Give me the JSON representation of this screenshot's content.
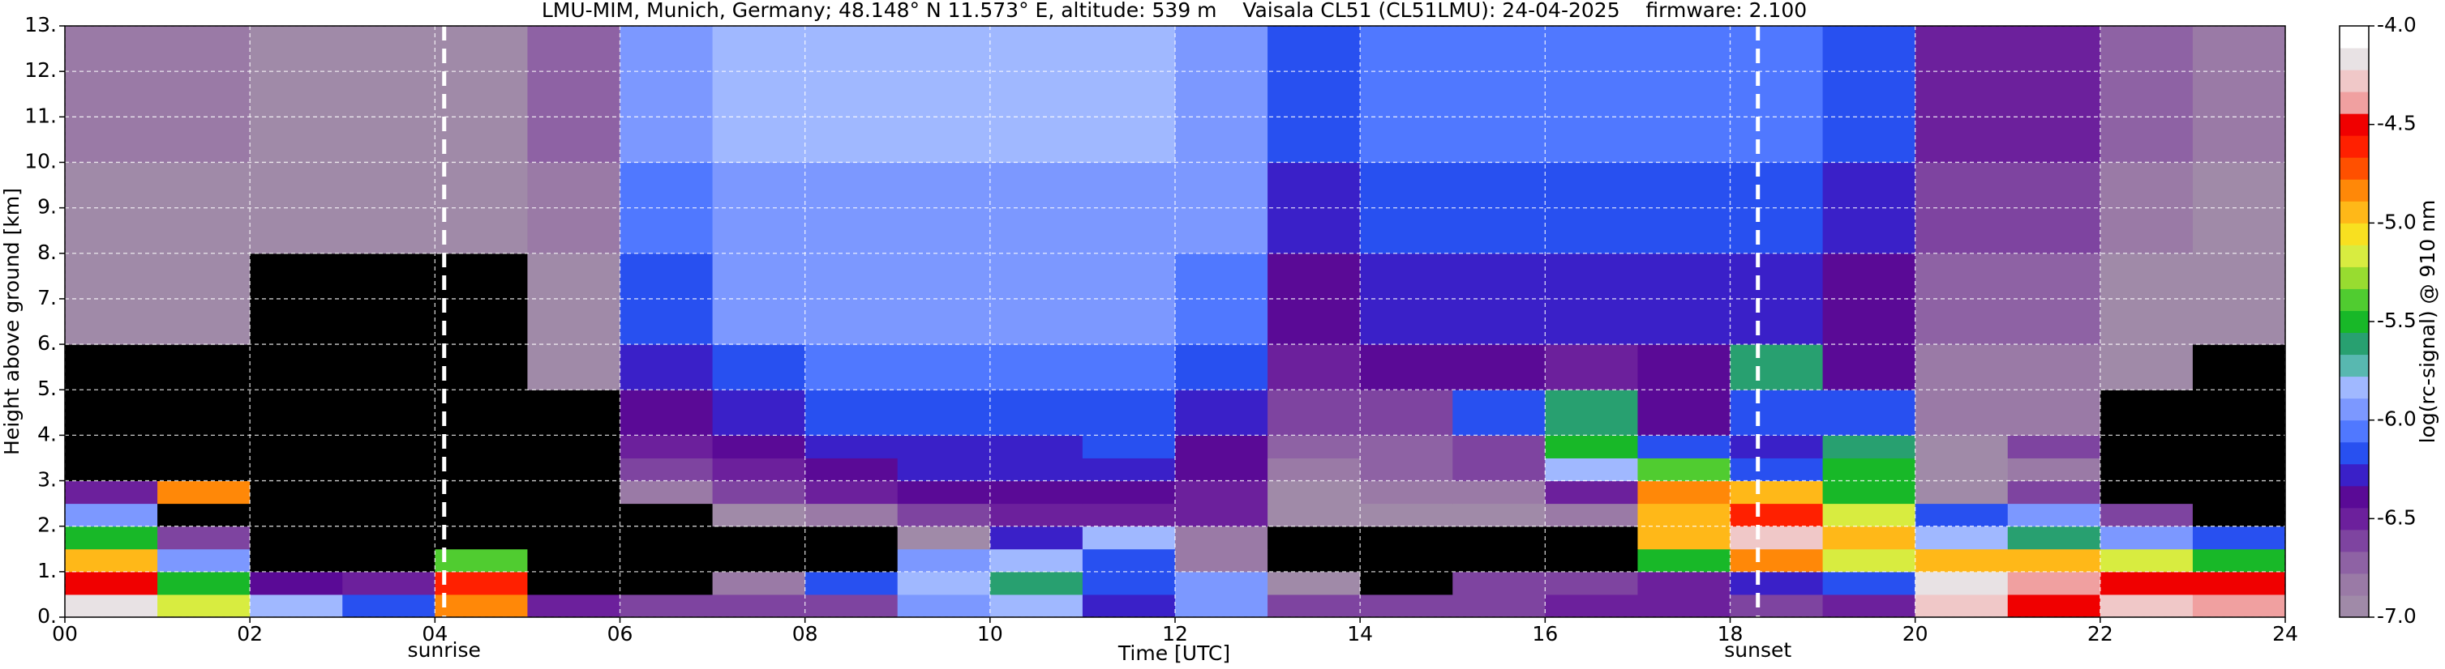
{
  "chart_data": {
    "type": "heatmap",
    "title": "LMU-MIM, Munich, Germany; 48.148° N 11.573° E, altitude: 539 m    Vaisala CL51 (CL51LMU): 24-04-2025    firmware: 2.100",
    "xlabel": "Time [UTC]",
    "ylabel": "Height above ground [km]",
    "colorbar_label": "log(rc-signal) @ 910 nm",
    "xlim": [
      0,
      24
    ],
    "ylim": [
      0,
      13
    ],
    "clim": [
      -7,
      -4
    ],
    "xticks": [
      {
        "value": 0,
        "label": "00"
      },
      {
        "value": 2,
        "label": "02"
      },
      {
        "value": 4,
        "label": "04"
      },
      {
        "value": 6,
        "label": "06"
      },
      {
        "value": 8,
        "label": "08"
      },
      {
        "value": 10,
        "label": "10"
      },
      {
        "value": 12,
        "label": "12"
      },
      {
        "value": 14,
        "label": "14"
      },
      {
        "value": 16,
        "label": "16"
      },
      {
        "value": 18,
        "label": "18"
      },
      {
        "value": 20,
        "label": "20"
      },
      {
        "value": 22,
        "label": "22"
      },
      {
        "value": 24,
        "label": "24"
      }
    ],
    "yticks": [
      {
        "value": 0,
        "label": "0."
      },
      {
        "value": 1,
        "label": "1."
      },
      {
        "value": 2,
        "label": "2."
      },
      {
        "value": 3,
        "label": "3."
      },
      {
        "value": 4,
        "label": "4."
      },
      {
        "value": 5,
        "label": "5."
      },
      {
        "value": 6,
        "label": "6."
      },
      {
        "value": 7,
        "label": "7."
      },
      {
        "value": 8,
        "label": "8."
      },
      {
        "value": 9,
        "label": "9."
      },
      {
        "value": 10,
        "label": "10."
      },
      {
        "value": 11,
        "label": "11."
      },
      {
        "value": 12,
        "label": "12."
      },
      {
        "value": 13,
        "label": "13."
      }
    ],
    "cticks": [
      {
        "value": -7,
        "label": "-7.0"
      },
      {
        "value": -6.5,
        "label": "-6.5"
      },
      {
        "value": -6,
        "label": "-6.0"
      },
      {
        "value": -5.5,
        "label": "-5.5"
      },
      {
        "value": -5,
        "label": "-5.0"
      },
      {
        "value": -4.5,
        "label": "-4.5"
      },
      {
        "value": -4,
        "label": "-4.0"
      }
    ],
    "grid": true,
    "under_color": "#000000",
    "colormap": [
      "#a08aa8",
      "#9a7aa6",
      "#8e62a4",
      "#7e44a0",
      "#6c209c",
      "#5a0a96",
      "#3a20c8",
      "#2850f0",
      "#5078ff",
      "#7c98ff",
      "#a0b8ff",
      "#58b8b0",
      "#28a070",
      "#18b828",
      "#50cc30",
      "#98dc30",
      "#d8ec40",
      "#f8e020",
      "#ffb818",
      "#ff8808",
      "#ff5000",
      "#ff2000",
      "#f00000",
      "#f0a0a0",
      "#f0c8c8",
      "#e8e2e4",
      "#ffffff"
    ],
    "annotations": [
      {
        "text": "sunrise",
        "x": 4.1
      },
      {
        "text": "sunset",
        "x": 18.3
      }
    ],
    "x_edges": [
      0,
      1,
      2,
      3,
      4,
      5,
      6,
      7,
      8,
      9,
      10,
      11,
      12,
      13,
      14,
      15,
      16,
      17,
      18,
      19,
      20,
      21,
      22,
      23,
      24
    ],
    "y_edges": [
      0,
      0.5,
      1,
      1.5,
      2,
      2.5,
      3,
      3.5,
      4,
      5,
      6,
      8,
      10,
      13
    ],
    "z": [
      [
        -4.2,
        -5.2,
        -5.8,
        -6.2,
        -4.8,
        -6.5,
        -6.6,
        -6.6,
        -6.6,
        -6.0,
        -5.8,
        -6.3,
        -6.0,
        -6.6,
        -6.6,
        -6.6,
        -6.5,
        -6.5,
        -6.6,
        -6.5,
        -4.3,
        -4.5,
        -4.3,
        -4.4
      ],
      [
        -4.5,
        -5.5,
        -6.4,
        -6.5,
        -4.6,
        -7.2,
        -7.3,
        -6.8,
        -6.2,
        -5.8,
        -5.6,
        -6.2,
        -6.0,
        -7.0,
        -7.1,
        -6.6,
        -6.6,
        -6.5,
        -6.3,
        -6.2,
        -4.2,
        -4.4,
        -4.5,
        -4.5
      ],
      [
        -5.0,
        -6.0,
        -7.3,
        -7.4,
        -5.4,
        -7.4,
        -7.4,
        -7.3,
        -7.2,
        -6.0,
        -5.8,
        -6.2,
        -6.8,
        -7.4,
        -7.4,
        -7.3,
        -7.3,
        -5.5,
        -4.8,
        -5.2,
        -5.0,
        -5.0,
        -5.2,
        -5.5
      ],
      [
        -5.5,
        -6.6,
        -7.4,
        -7.4,
        -7.4,
        -7.4,
        -7.4,
        -7.3,
        -7.2,
        -7.0,
        -6.3,
        -5.8,
        -6.8,
        -7.3,
        -7.2,
        -7.3,
        -7.3,
        -5.0,
        -4.3,
        -5.0,
        -5.8,
        -5.6,
        -6.0,
        -6.2
      ],
      [
        -6.0,
        -7.3,
        -7.4,
        -7.4,
        -7.4,
        -7.4,
        -7.2,
        -7.0,
        -6.8,
        -6.6,
        -6.5,
        -6.5,
        -6.5,
        -6.9,
        -7.0,
        -7.0,
        -6.8,
        -5.0,
        -4.6,
        -5.2,
        -6.2,
        -6.0,
        -6.6,
        -7.2
      ],
      [
        -6.5,
        -4.8,
        -7.4,
        -7.4,
        -7.4,
        -7.2,
        -6.8,
        -6.6,
        -6.5,
        -6.4,
        -6.4,
        -6.4,
        -6.5,
        -6.9,
        -6.8,
        -6.8,
        -6.5,
        -4.8,
        -5.0,
        -5.5,
        -7.0,
        -6.6,
        -7.3,
        -7.3
      ],
      [
        -7.3,
        -7.3,
        -7.4,
        -7.4,
        -7.4,
        -7.2,
        -6.6,
        -6.5,
        -6.4,
        -6.3,
        -6.3,
        -6.3,
        -6.4,
        -6.8,
        -6.7,
        -6.6,
        -5.8,
        -5.4,
        -6.2,
        -5.5,
        -7.0,
        -6.8,
        -7.4,
        -7.4
      ],
      [
        -7.3,
        -7.3,
        -7.3,
        -7.4,
        -7.4,
        -7.2,
        -6.5,
        -6.4,
        -6.3,
        -6.3,
        -6.3,
        -6.2,
        -6.4,
        -6.7,
        -6.7,
        -6.6,
        -5.5,
        -6.2,
        -6.3,
        -5.6,
        -7.0,
        -6.6,
        -7.3,
        -7.4
      ],
      [
        -7.2,
        -7.2,
        -7.3,
        -7.3,
        -7.3,
        -7.1,
        -6.4,
        -6.3,
        -6.2,
        -6.2,
        -6.2,
        -6.2,
        -6.3,
        -6.6,
        -6.6,
        -6.2,
        -5.6,
        -6.4,
        -6.2,
        -6.2,
        -6.8,
        -6.8,
        -7.2,
        -7.3
      ],
      [
        -7.1,
        -7.1,
        -7.2,
        -7.2,
        -7.2,
        -7.0,
        -6.3,
        -6.2,
        -6.1,
        -6.1,
        -6.1,
        -6.1,
        -6.2,
        -6.5,
        -6.4,
        -6.4,
        -6.5,
        -6.4,
        -5.6,
        -6.4,
        -6.8,
        -6.8,
        -7.0,
        -7.1
      ],
      [
        -7.0,
        -7.0,
        -7.1,
        -7.1,
        -7.1,
        -6.9,
        -6.2,
        -6.0,
        -6.0,
        -6.0,
        -6.0,
        -6.0,
        -6.1,
        -6.4,
        -6.3,
        -6.3,
        -6.3,
        -6.3,
        -6.3,
        -6.4,
        -6.7,
        -6.7,
        -6.9,
        -7.0
      ],
      [
        -6.9,
        -6.9,
        -7.0,
        -7.0,
        -7.0,
        -6.8,
        -6.1,
        -5.9,
        -5.9,
        -5.9,
        -5.9,
        -5.9,
        -6.0,
        -6.3,
        -6.2,
        -6.2,
        -6.2,
        -6.2,
        -6.2,
        -6.3,
        -6.6,
        -6.6,
        -6.8,
        -6.9
      ],
      [
        -6.8,
        -6.8,
        -6.9,
        -6.9,
        -6.9,
        -6.7,
        -6.0,
        -5.8,
        -5.8,
        -5.8,
        -5.8,
        -5.8,
        -5.9,
        -6.2,
        -6.1,
        -6.1,
        -6.1,
        -6.1,
        -6.1,
        -6.2,
        -6.5,
        -6.5,
        -6.7,
        -6.8
      ]
    ]
  }
}
